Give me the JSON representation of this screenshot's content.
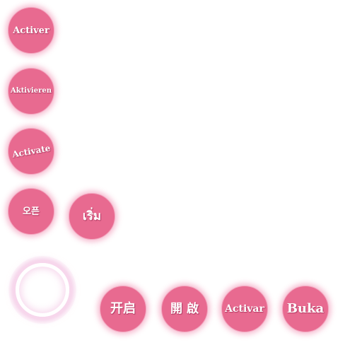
{
  "buttons": {
    "activer": "Activer",
    "aktivieren": "Aktivieren",
    "activate": "Activate",
    "korean": "오픈",
    "thai": "เริ่ม",
    "chinese_simplified": "开启",
    "chinese_traditional": "開 啟",
    "activar": "Activar",
    "buka": "Buka"
  },
  "colors": {
    "button_fill": "#e86a90",
    "button_glow": "#ec6896",
    "ring_glow": "#eeaad7"
  },
  "icons": {
    "loading_ring": "glowing-ring-icon"
  }
}
